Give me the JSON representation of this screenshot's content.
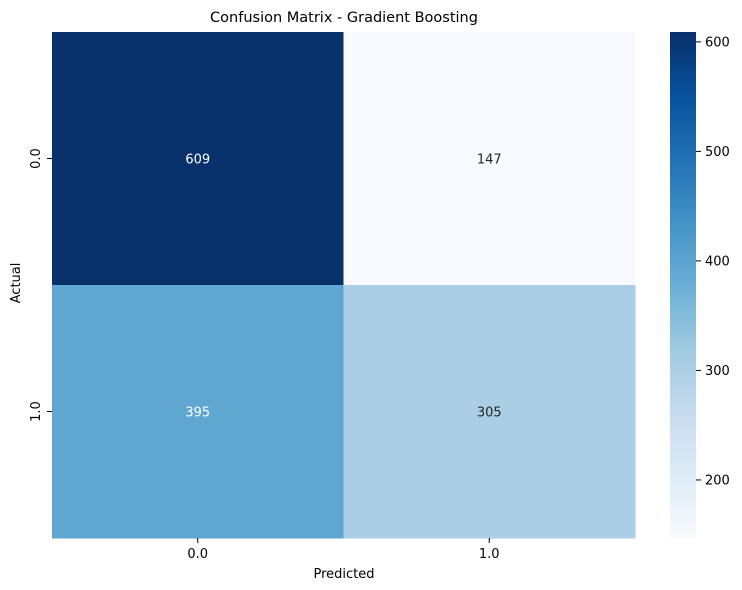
{
  "chart_data": {
    "type": "heatmap",
    "title": "Confusion Matrix - Gradient Boosting",
    "xlabel": "Predicted",
    "ylabel": "Actual",
    "x_categories": [
      "0.0",
      "1.0"
    ],
    "y_categories": [
      "0.0",
      "1.0"
    ],
    "values": [
      [
        609,
        147
      ],
      [
        395,
        305
      ]
    ],
    "colormap": "Blues",
    "color_range": [
      147,
      609
    ],
    "colorbar_ticks": [
      200,
      300,
      400,
      500,
      600
    ],
    "colorbar_ticklabels": [
      "200",
      "300",
      "400",
      "500",
      "600"
    ],
    "annotation_colors": {
      "on_dark": "#ffffff",
      "on_light": "#262626"
    }
  }
}
